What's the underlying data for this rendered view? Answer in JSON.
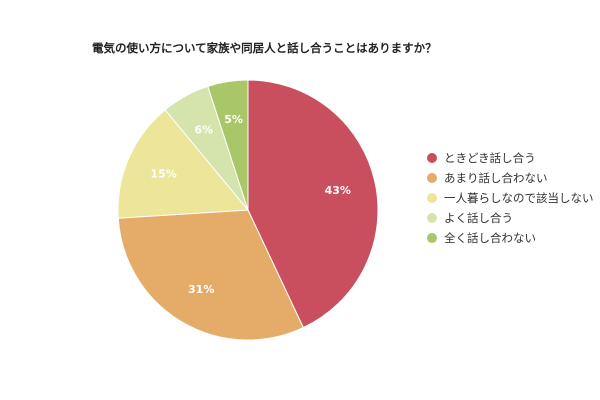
{
  "chart_data": {
    "type": "pie",
    "title": "電気の使い方について家族や同居人と話し合うことはありますか？",
    "categories": [
      "ときどき話し合う",
      "あまり話し合わない",
      "一人暮らしなので該当しない",
      "よく話し合う",
      "全く話し合わない"
    ],
    "values": [
      43,
      31,
      15,
      6,
      5
    ],
    "value_labels": [
      "43%",
      "31%",
      "15%",
      "6%",
      "5%"
    ],
    "colors": [
      "#c94f5e",
      "#e5ab69",
      "#ece59a",
      "#d5e3ad",
      "#a9c669"
    ],
    "legend_position": "right",
    "start": "top, clockwise"
  }
}
